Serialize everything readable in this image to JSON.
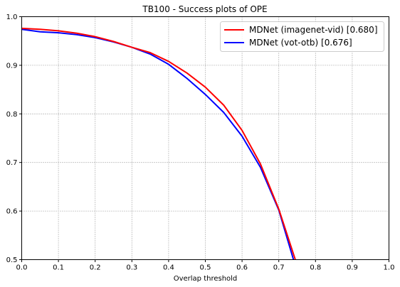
{
  "chart_data": {
    "type": "line",
    "title": "TB100 - Success plots of OPE",
    "xlabel": "Overlap threshold",
    "ylabel": "",
    "xlim": [
      0,
      1
    ],
    "ylim": [
      0.5,
      1
    ],
    "xticks": [
      "0.0",
      "0.1",
      "0.2",
      "0.3",
      "0.4",
      "0.5",
      "0.6",
      "0.7",
      "0.8",
      "0.9",
      "1.0"
    ],
    "yticks": [
      "0.5",
      "0.6",
      "0.7",
      "0.8",
      "0.9",
      "1.0"
    ],
    "grid": true,
    "legend_position": "top-right",
    "series": [
      {
        "name": "MDNet (imagenet-vid) [0.680]",
        "color": "#ff0000",
        "x": [
          0.0,
          0.05,
          0.1,
          0.15,
          0.2,
          0.25,
          0.3,
          0.35,
          0.4,
          0.45,
          0.5,
          0.55,
          0.6,
          0.65,
          0.7,
          0.745
        ],
        "y": [
          0.976,
          0.974,
          0.971,
          0.966,
          0.959,
          0.949,
          0.937,
          0.926,
          0.908,
          0.884,
          0.855,
          0.818,
          0.766,
          0.697,
          0.604,
          0.5
        ]
      },
      {
        "name": "MDNet (vot-otb) [0.676]",
        "color": "#0000ff",
        "x": [
          0.0,
          0.05,
          0.1,
          0.15,
          0.2,
          0.25,
          0.3,
          0.35,
          0.4,
          0.45,
          0.5,
          0.55,
          0.6,
          0.65,
          0.7,
          0.74
        ],
        "y": [
          0.974,
          0.969,
          0.967,
          0.963,
          0.957,
          0.948,
          0.937,
          0.923,
          0.902,
          0.873,
          0.84,
          0.803,
          0.754,
          0.69,
          0.602,
          0.5
        ]
      }
    ]
  }
}
